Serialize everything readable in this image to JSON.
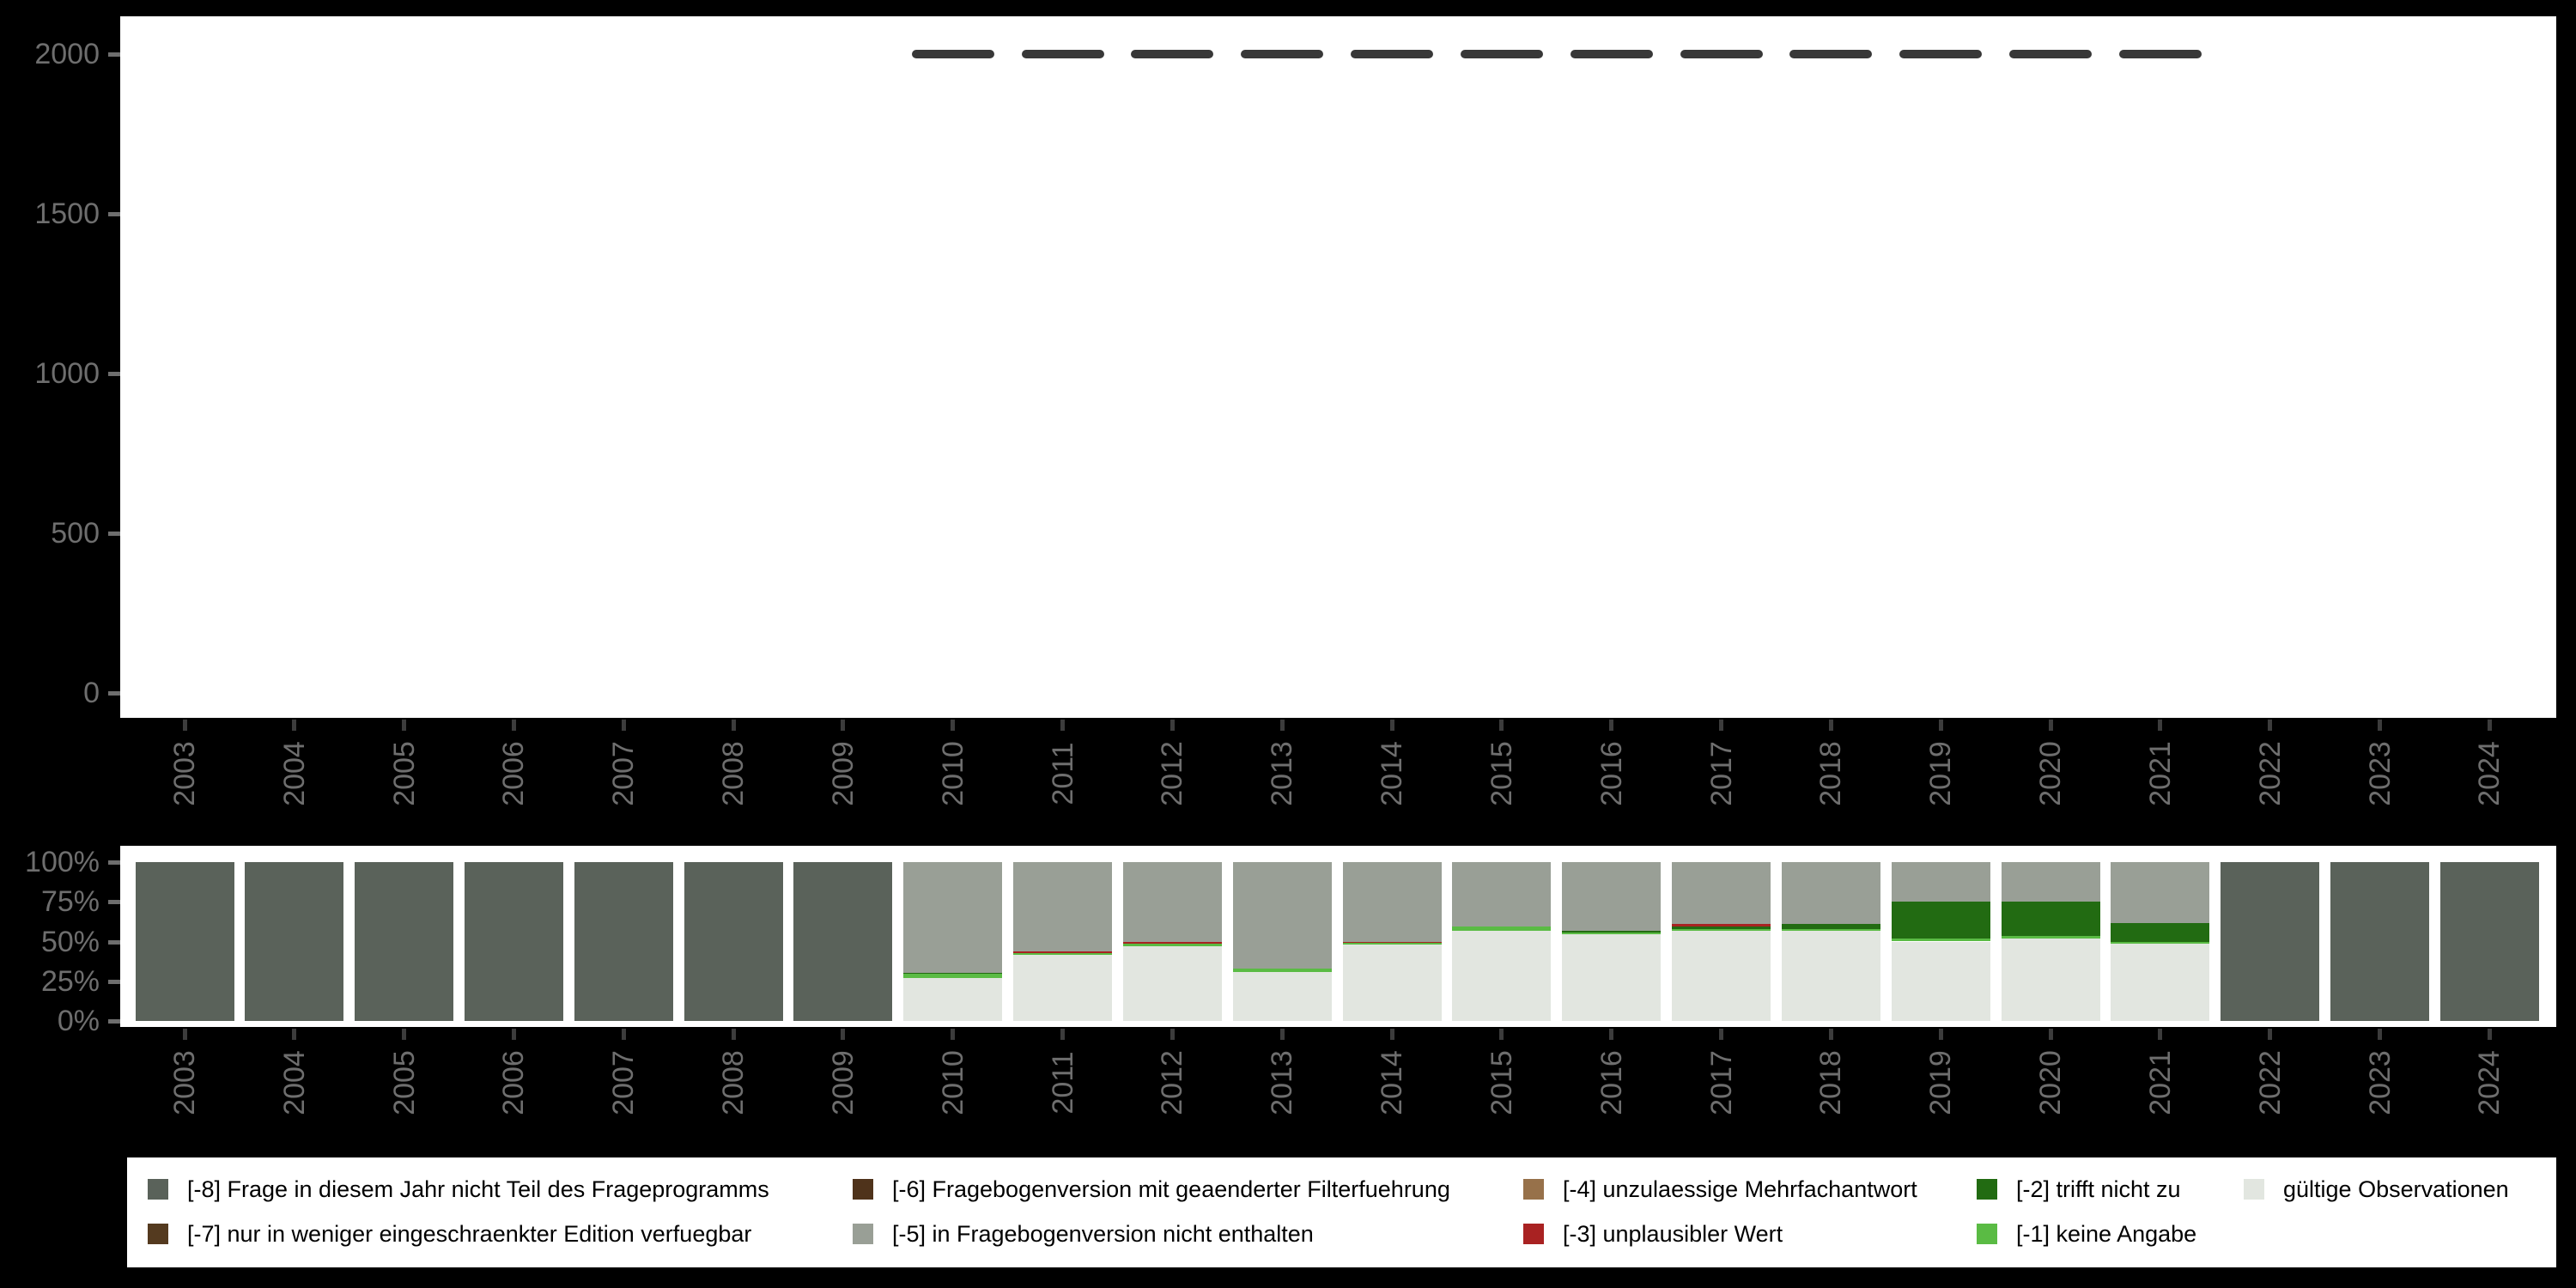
{
  "colors": {
    "background": "#000000",
    "panel": "#ffffff",
    "axis_text": "#6e6e6e",
    "x_tick": "#3c3c3c",
    "marker": "#383838",
    "legend_text": "#000000",
    "legend_background": "#ffffff"
  },
  "chart_data": [
    {
      "type": "scatter",
      "title": "",
      "xlabel": "",
      "ylabel": "",
      "marker": "horizontal-dash",
      "marker_color": "#383838",
      "x": [
        2010,
        2011,
        2012,
        2013,
        2014,
        2015,
        2016,
        2017,
        2018,
        2019,
        2020,
        2021
      ],
      "y": [
        2000,
        2000,
        2000,
        2000,
        2000,
        2000,
        2000,
        2000,
        2000,
        2000,
        2000,
        2000
      ],
      "ylim": [
        0,
        2100
      ],
      "yticks": [
        0,
        500,
        1000,
        1500,
        2000
      ],
      "ytick_labels": [
        "0",
        "500",
        "1000",
        "1500",
        "2000"
      ],
      "categories": [
        "2003",
        "2004",
        "2005",
        "2006",
        "2007",
        "2008",
        "2009",
        "2010",
        "2011",
        "2012",
        "2013",
        "2014",
        "2015",
        "2016",
        "2017",
        "2018",
        "2019",
        "2020",
        "2021",
        "2022",
        "2023",
        "2024"
      ],
      "grid": false,
      "legend_position": "none"
    },
    {
      "type": "bar",
      "stacked": true,
      "unit": "percent",
      "title": "",
      "xlabel": "",
      "ylabel": "",
      "categories": [
        "2003",
        "2004",
        "2005",
        "2006",
        "2007",
        "2008",
        "2009",
        "2010",
        "2011",
        "2012",
        "2013",
        "2014",
        "2015",
        "2016",
        "2017",
        "2018",
        "2019",
        "2020",
        "2021",
        "2022",
        "2023",
        "2024"
      ],
      "yticks": [
        0,
        25,
        50,
        75,
        100
      ],
      "ytick_labels": [
        "0%",
        "25%",
        "50%",
        "75%",
        "100%"
      ],
      "ylim": [
        0,
        100
      ],
      "grid": false,
      "legend_position": "bottom",
      "series": [
        {
          "code": "-8",
          "name": "[-8] Frage in diesem Jahr nicht Teil des Frageprogramms",
          "color": "#5a625a",
          "values": [
            100,
            100,
            100,
            100,
            100,
            100,
            100,
            0,
            0,
            0,
            0,
            0,
            0,
            0,
            0,
            0,
            0,
            0,
            0,
            100,
            100,
            100
          ]
        },
        {
          "code": "-7",
          "name": "[-7] nur in weniger eingeschraenkter Edition verfuegbar",
          "color": "#543a1f",
          "values": [
            0,
            0,
            0,
            0,
            0,
            0,
            0,
            0,
            0,
            0,
            0,
            0,
            0,
            0,
            0,
            0,
            0,
            0,
            0,
            0,
            0,
            0
          ]
        },
        {
          "code": "-6",
          "name": "[-6] Fragebogenversion mit geaenderter Filterfuehrung",
          "color": "#4f331b",
          "values": [
            0,
            0,
            0,
            0,
            0,
            0,
            0,
            0,
            0,
            0,
            0,
            0,
            0,
            0,
            0,
            0,
            0,
            0,
            0,
            0,
            0,
            0
          ]
        },
        {
          "code": "-5",
          "name": "[-5] in Fragebogenversion nicht enthalten",
          "color": "#999f96",
          "values": [
            0,
            0,
            0,
            0,
            0,
            0,
            0,
            69.5,
            56,
            50,
            67,
            50,
            40.5,
            43.5,
            39,
            39,
            25,
            25,
            38.5,
            0,
            0,
            0
          ]
        },
        {
          "code": "-4",
          "name": "[-4] unzulaessige Mehrfachantwort",
          "color": "#97714a",
          "values": [
            0,
            0,
            0,
            0,
            0,
            0,
            0,
            0,
            0,
            0,
            0,
            0,
            0,
            0,
            0,
            0,
            0,
            0,
            0,
            0,
            0,
            0
          ]
        },
        {
          "code": "-3",
          "name": "[-3] unplausibler Wert",
          "color": "#a92222",
          "values": [
            0,
            0,
            0,
            0,
            0,
            0,
            0,
            0,
            1.5,
            1.5,
            0,
            1,
            0,
            0,
            1.5,
            0,
            0,
            0,
            0,
            0,
            0,
            0
          ]
        },
        {
          "code": "-2",
          "name": "[-2] trifft nicht zu",
          "color": "#226b12",
          "values": [
            0,
            0,
            0,
            0,
            0,
            0,
            0,
            1,
            0,
            0,
            0,
            0,
            0,
            1,
            1.5,
            3,
            23,
            21.5,
            12,
            0,
            0,
            0
          ]
        },
        {
          "code": "-1",
          "name": "[-1] keine Angabe",
          "color": "#5abb44",
          "values": [
            0,
            0,
            0,
            0,
            0,
            0,
            0,
            2.5,
            1,
            1.5,
            2,
            1,
            2.5,
            1,
            1,
            1.5,
            2,
            1.5,
            1,
            0,
            0,
            0
          ]
        },
        {
          "code": "valid",
          "name": "gültige Observationen",
          "color": "#e2e6e0",
          "values": [
            0,
            0,
            0,
            0,
            0,
            0,
            0,
            27,
            41.5,
            47,
            31,
            48,
            57,
            54.5,
            57,
            56.5,
            50,
            52,
            48.5,
            0,
            0,
            0
          ]
        }
      ]
    }
  ],
  "legend": {
    "columns": [
      [
        "-8",
        "-7"
      ],
      [
        "-6",
        "-5"
      ],
      [
        "-4",
        "-3"
      ],
      [
        "-2",
        "-1"
      ],
      [
        "valid"
      ]
    ]
  }
}
